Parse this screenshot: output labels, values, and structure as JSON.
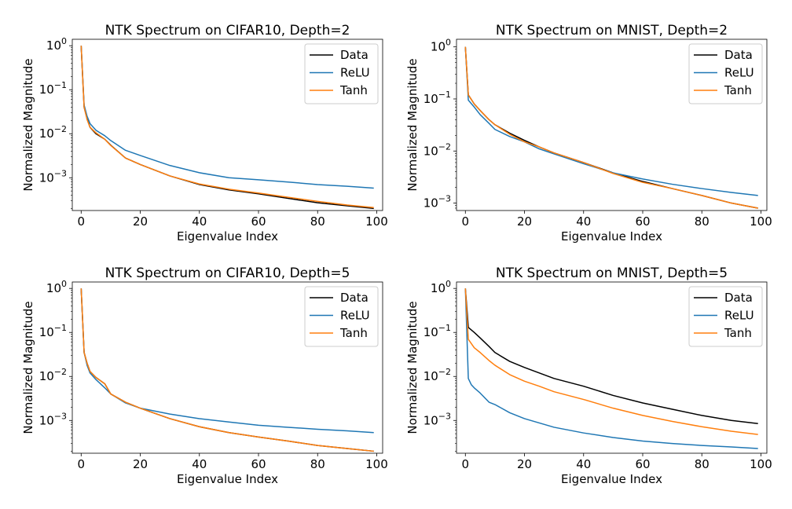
{
  "chart_data": [
    {
      "type": "line",
      "title": "NTK Spectrum on CIFAR10, Depth=2",
      "xlabel": "Eigenvalue Index",
      "ylabel": "Normalized Magnitude",
      "yscale": "log",
      "xlim": [
        -3,
        102
      ],
      "ylim": [
        0.00018,
        1.4
      ],
      "xticks": [
        "0",
        "20",
        "40",
        "60",
        "80",
        "100"
      ],
      "yticks": [
        {
          "value": 1,
          "exp": "0"
        },
        {
          "value": 0.1,
          "exp": "−1"
        },
        {
          "value": 0.01,
          "exp": "−2"
        },
        {
          "value": 0.001,
          "exp": "−3"
        }
      ],
      "legend_position": "top-right",
      "series": [
        {
          "name": "Data",
          "color": "#000000",
          "points": [
            [
              0,
              1.0
            ],
            [
              1,
              0.04
            ],
            [
              2,
              0.022
            ],
            [
              3,
              0.014
            ],
            [
              5,
              0.01
            ],
            [
              8,
              0.0075
            ],
            [
              10,
              0.0055
            ],
            [
              15,
              0.0028
            ],
            [
              20,
              0.002
            ],
            [
              30,
              0.0011
            ],
            [
              40,
              0.0007
            ],
            [
              50,
              0.00053
            ],
            [
              60,
              0.00043
            ],
            [
              70,
              0.00034
            ],
            [
              80,
              0.00027
            ],
            [
              90,
              0.00023
            ],
            [
              99,
              0.0002
            ]
          ]
        },
        {
          "name": "ReLU",
          "color": "#1f77b4",
          "points": [
            [
              0,
              1.0
            ],
            [
              1,
              0.045
            ],
            [
              2,
              0.025
            ],
            [
              3,
              0.017
            ],
            [
              5,
              0.012
            ],
            [
              8,
              0.009
            ],
            [
              10,
              0.007
            ],
            [
              15,
              0.0042
            ],
            [
              20,
              0.0032
            ],
            [
              30,
              0.0019
            ],
            [
              40,
              0.0013
            ],
            [
              50,
              0.001
            ],
            [
              60,
              0.0009
            ],
            [
              70,
              0.0008
            ],
            [
              80,
              0.0007
            ],
            [
              90,
              0.00064
            ],
            [
              99,
              0.00058
            ]
          ]
        },
        {
          "name": "Tanh",
          "color": "#ff7f0e",
          "points": [
            [
              0,
              1.0
            ],
            [
              1,
              0.04
            ],
            [
              2,
              0.021
            ],
            [
              3,
              0.014
            ],
            [
              5,
              0.0105
            ],
            [
              8,
              0.0075
            ],
            [
              10,
              0.0054
            ],
            [
              15,
              0.0028
            ],
            [
              20,
              0.002
            ],
            [
              30,
              0.0011
            ],
            [
              40,
              0.00072
            ],
            [
              50,
              0.00055
            ],
            [
              60,
              0.00045
            ],
            [
              70,
              0.00036
            ],
            [
              80,
              0.00029
            ],
            [
              90,
              0.00024
            ],
            [
              99,
              0.00021
            ]
          ]
        }
      ]
    },
    {
      "type": "line",
      "title": "NTK Spectrum on MNIST, Depth=2",
      "xlabel": "Eigenvalue Index",
      "ylabel": "Normalized Magnitude",
      "yscale": "log",
      "xlim": [
        -3,
        102
      ],
      "ylim": [
        0.00072,
        1.4
      ],
      "xticks": [
        "0",
        "20",
        "40",
        "60",
        "80",
        "100"
      ],
      "yticks": [
        {
          "value": 1,
          "exp": "0"
        },
        {
          "value": 0.1,
          "exp": "−1"
        },
        {
          "value": 0.01,
          "exp": "−2"
        },
        {
          "value": 0.001,
          "exp": "−3"
        }
      ],
      "legend_position": "top-right",
      "series": [
        {
          "name": "Data",
          "color": "#000000",
          "points": [
            [
              0,
              1.0
            ],
            [
              1,
              0.12
            ],
            [
              3,
              0.08
            ],
            [
              5,
              0.06
            ],
            [
              8,
              0.04
            ],
            [
              10,
              0.032
            ],
            [
              15,
              0.022
            ],
            [
              20,
              0.016
            ],
            [
              25,
              0.012
            ],
            [
              30,
              0.0092
            ],
            [
              40,
              0.006
            ],
            [
              50,
              0.0038
            ],
            [
              60,
              0.0026
            ],
            [
              70,
              0.0019
            ],
            [
              80,
              0.0014
            ],
            [
              90,
              0.001
            ],
            [
              99,
              0.0008
            ]
          ]
        },
        {
          "name": "ReLU",
          "color": "#1f77b4",
          "points": [
            [
              0,
              1.0
            ],
            [
              1,
              0.095
            ],
            [
              3,
              0.07
            ],
            [
              5,
              0.05
            ],
            [
              8,
              0.034
            ],
            [
              10,
              0.026
            ],
            [
              15,
              0.019
            ],
            [
              20,
              0.015
            ],
            [
              25,
              0.011
            ],
            [
              30,
              0.0088
            ],
            [
              40,
              0.0057
            ],
            [
              50,
              0.0038
            ],
            [
              60,
              0.0029
            ],
            [
              70,
              0.0023
            ],
            [
              80,
              0.0019
            ],
            [
              90,
              0.0016
            ],
            [
              99,
              0.0014
            ]
          ]
        },
        {
          "name": "Tanh",
          "color": "#ff7f0e",
          "points": [
            [
              0,
              1.0
            ],
            [
              1,
              0.12
            ],
            [
              3,
              0.08
            ],
            [
              5,
              0.06
            ],
            [
              8,
              0.04
            ],
            [
              10,
              0.032
            ],
            [
              15,
              0.021
            ],
            [
              20,
              0.015
            ],
            [
              25,
              0.012
            ],
            [
              30,
              0.0092
            ],
            [
              40,
              0.006
            ],
            [
              50,
              0.0037
            ],
            [
              60,
              0.0025
            ],
            [
              70,
              0.0019
            ],
            [
              80,
              0.0014
            ],
            [
              90,
              0.001
            ],
            [
              99,
              0.0008
            ]
          ]
        }
      ]
    },
    {
      "type": "line",
      "title": "NTK Spectrum on CIFAR10, Depth=5",
      "xlabel": "Eigenvalue Index",
      "ylabel": "Normalized Magnitude",
      "yscale": "log",
      "xlim": [
        -3,
        102
      ],
      "ylim": [
        0.00018,
        1.4
      ],
      "xticks": [
        "0",
        "20",
        "40",
        "60",
        "80",
        "100"
      ],
      "yticks": [
        {
          "value": 1,
          "exp": "0"
        },
        {
          "value": 0.1,
          "exp": "−1"
        },
        {
          "value": 0.01,
          "exp": "−2"
        },
        {
          "value": 0.001,
          "exp": "−3"
        }
      ],
      "legend_position": "top-right",
      "series": [
        {
          "name": "Data",
          "color": "#000000",
          "points": [
            [
              0,
              1.0
            ],
            [
              1,
              0.035
            ],
            [
              2,
              0.02
            ],
            [
              3,
              0.013
            ],
            [
              5,
              0.0095
            ],
            [
              8,
              0.0068
            ],
            [
              10,
              0.004
            ],
            [
              15,
              0.0026
            ],
            [
              20,
              0.0019
            ],
            [
              30,
              0.0011
            ],
            [
              40,
              0.00072
            ],
            [
              50,
              0.00053
            ],
            [
              60,
              0.00042
            ],
            [
              70,
              0.00034
            ],
            [
              80,
              0.00027
            ],
            [
              90,
              0.00023
            ],
            [
              99,
              0.0002
            ]
          ]
        },
        {
          "name": "ReLU",
          "color": "#1f77b4",
          "points": [
            [
              0,
              1.0
            ],
            [
              1,
              0.035
            ],
            [
              2,
              0.018
            ],
            [
              3,
              0.012
            ],
            [
              5,
              0.0085
            ],
            [
              8,
              0.0055
            ],
            [
              10,
              0.004
            ],
            [
              15,
              0.0025
            ],
            [
              20,
              0.0019
            ],
            [
              30,
              0.0014
            ],
            [
              40,
              0.0011
            ],
            [
              50,
              0.00092
            ],
            [
              60,
              0.00078
            ],
            [
              70,
              0.0007
            ],
            [
              80,
              0.00063
            ],
            [
              90,
              0.00058
            ],
            [
              99,
              0.00053
            ]
          ]
        },
        {
          "name": "Tanh",
          "color": "#ff7f0e",
          "points": [
            [
              0,
              1.0
            ],
            [
              1,
              0.035
            ],
            [
              2,
              0.02
            ],
            [
              3,
              0.013
            ],
            [
              5,
              0.0095
            ],
            [
              8,
              0.0068
            ],
            [
              10,
              0.004
            ],
            [
              15,
              0.0026
            ],
            [
              20,
              0.0019
            ],
            [
              30,
              0.0011
            ],
            [
              40,
              0.00072
            ],
            [
              50,
              0.00053
            ],
            [
              60,
              0.00042
            ],
            [
              70,
              0.00034
            ],
            [
              80,
              0.00027
            ],
            [
              90,
              0.00023
            ],
            [
              99,
              0.0002
            ]
          ]
        }
      ]
    },
    {
      "type": "line",
      "title": "NTK Spectrum on MNIST, Depth=5",
      "xlabel": "Eigenvalue Index",
      "ylabel": "Normalized Magnitude",
      "yscale": "log",
      "xlim": [
        -3,
        102
      ],
      "ylim": [
        0.00018,
        1.4
      ],
      "xticks": [
        "0",
        "20",
        "40",
        "60",
        "80",
        "100"
      ],
      "yticks": [
        {
          "value": 1,
          "exp": "0"
        },
        {
          "value": 0.1,
          "exp": "−1"
        },
        {
          "value": 0.01,
          "exp": "−2"
        },
        {
          "value": 0.001,
          "exp": "−3"
        }
      ],
      "legend_position": "top-right",
      "series": [
        {
          "name": "Data",
          "color": "#000000",
          "points": [
            [
              0,
              1.0
            ],
            [
              1,
              0.13
            ],
            [
              3,
              0.1
            ],
            [
              5,
              0.075
            ],
            [
              8,
              0.048
            ],
            [
              10,
              0.035
            ],
            [
              15,
              0.022
            ],
            [
              20,
              0.016
            ],
            [
              25,
              0.012
            ],
            [
              30,
              0.009
            ],
            [
              40,
              0.006
            ],
            [
              50,
              0.0037
            ],
            [
              60,
              0.0025
            ],
            [
              70,
              0.0018
            ],
            [
              80,
              0.0013
            ],
            [
              90,
              0.001
            ],
            [
              99,
              0.00085
            ]
          ]
        },
        {
          "name": "ReLU",
          "color": "#1f77b4",
          "points": [
            [
              0,
              1.0
            ],
            [
              1,
              0.009
            ],
            [
              2,
              0.0065
            ],
            [
              3,
              0.0055
            ],
            [
              5,
              0.0042
            ],
            [
              8,
              0.0026
            ],
            [
              10,
              0.0023
            ],
            [
              15,
              0.0015
            ],
            [
              20,
              0.0011
            ],
            [
              30,
              0.0007
            ],
            [
              40,
              0.00052
            ],
            [
              50,
              0.00041
            ],
            [
              60,
              0.00034
            ],
            [
              70,
              0.0003
            ],
            [
              80,
              0.00027
            ],
            [
              90,
              0.00025
            ],
            [
              99,
              0.00023
            ]
          ]
        },
        {
          "name": "Tanh",
          "color": "#ff7f0e",
          "points": [
            [
              0,
              1.0
            ],
            [
              1,
              0.07
            ],
            [
              3,
              0.045
            ],
            [
              5,
              0.035
            ],
            [
              8,
              0.023
            ],
            [
              10,
              0.018
            ],
            [
              15,
              0.011
            ],
            [
              20,
              0.0078
            ],
            [
              25,
              0.006
            ],
            [
              30,
              0.0045
            ],
            [
              40,
              0.003
            ],
            [
              50,
              0.0019
            ],
            [
              60,
              0.0013
            ],
            [
              70,
              0.00095
            ],
            [
              80,
              0.00072
            ],
            [
              90,
              0.00057
            ],
            [
              99,
              0.00048
            ]
          ]
        }
      ]
    }
  ]
}
